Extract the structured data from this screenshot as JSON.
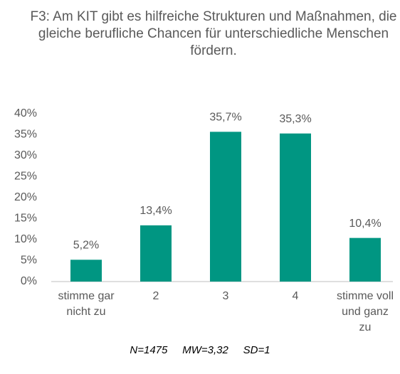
{
  "chart_data": {
    "type": "bar",
    "title": "F3: Am KIT gibt es hilfreiche Strukturen und Maßnahmen, die gleiche berufliche Chancen für unterschiedliche Menschen fördern.",
    "categories": [
      "stimme gar nicht zu",
      "2",
      "3",
      "4",
      "stimme voll und ganz zu"
    ],
    "values": [
      5.2,
      13.4,
      35.7,
      35.3,
      10.4
    ],
    "value_labels": [
      "5,2%",
      "13,4%",
      "35,7%",
      "35,3%",
      "10,4%"
    ],
    "color": "#009682",
    "ylim": [
      0,
      40
    ],
    "yticks": [
      {
        "value": 0,
        "label": "0%"
      },
      {
        "value": 5,
        "label": "5%"
      },
      {
        "value": 10,
        "label": "10%"
      },
      {
        "value": 15,
        "label": "15%"
      },
      {
        "value": 20,
        "label": "20%"
      },
      {
        "value": 25,
        "label": "25%"
      },
      {
        "value": 30,
        "label": "30%"
      },
      {
        "value": 35,
        "label": "35%"
      },
      {
        "value": 40,
        "label": "40%"
      }
    ],
    "grid": false,
    "annotations": [
      "N=1475     MW=3,32     SD=1"
    ]
  }
}
